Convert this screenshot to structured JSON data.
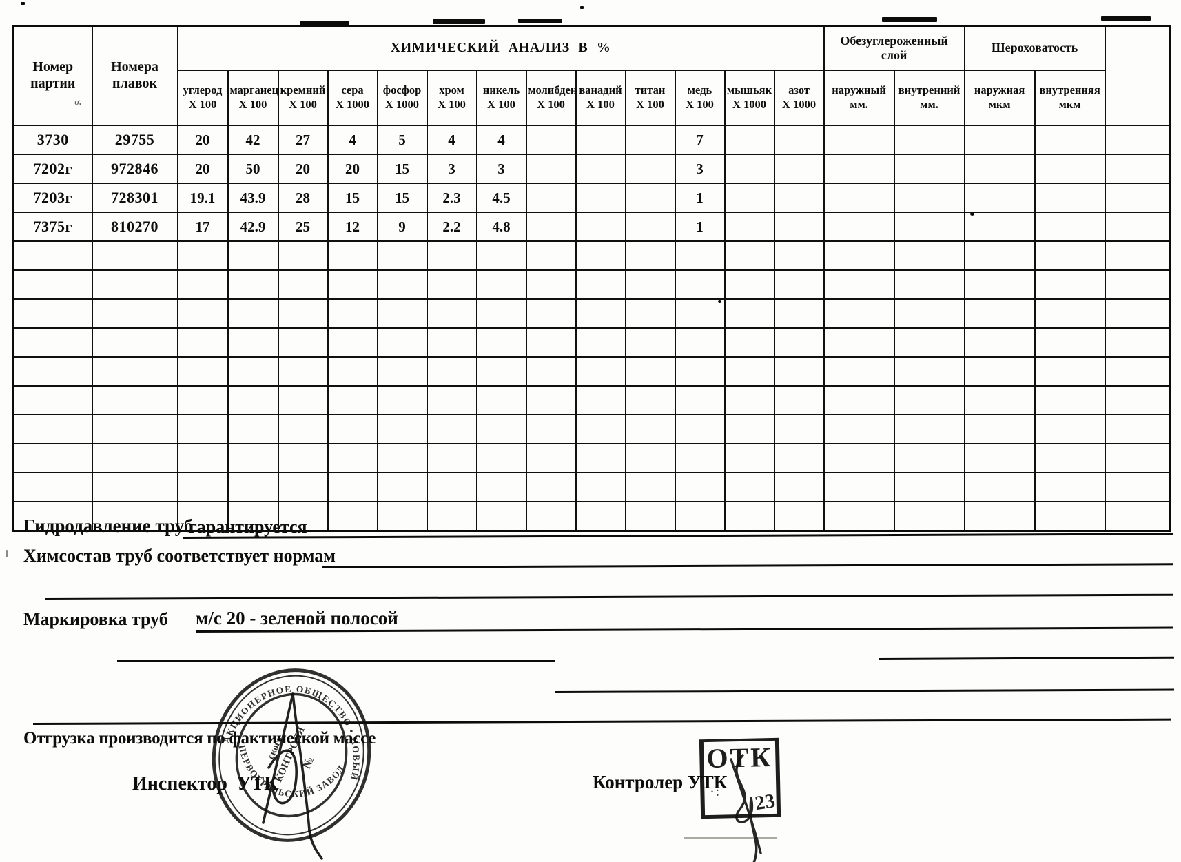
{
  "document": {
    "table": {
      "col1_header": "Номер\nпартии",
      "col1_note": "σ.",
      "col2_header": "Номера\nплавок",
      "chem_group": "ХИМИЧЕСКИЙ АНАЛИЗ В %",
      "decarb_group": "Обезуглероженный\nслой",
      "rough_group": "Шероховатость",
      "chem_cols": [
        {
          "name": "углерод",
          "mult": "X 100"
        },
        {
          "name": "марганец",
          "mult": "X 100"
        },
        {
          "name": "кремний",
          "mult": "X 100"
        },
        {
          "name": "сера",
          "mult": "X 1000"
        },
        {
          "name": "фосфор",
          "mult": "X 1000"
        },
        {
          "name": "хром",
          "mult": "X 100"
        },
        {
          "name": "никель",
          "mult": "X 100"
        },
        {
          "name": "молибден",
          "mult": "X 100"
        },
        {
          "name": "ванадий",
          "mult": "X 100"
        },
        {
          "name": "титан",
          "mult": "X 100"
        },
        {
          "name": "медь",
          "mult": "X 100"
        },
        {
          "name": "мышьяк",
          "mult": "X 1000"
        },
        {
          "name": "азот",
          "mult": "X 1000"
        }
      ],
      "decarb_cols": [
        {
          "name": "наружный",
          "unit": "мм."
        },
        {
          "name": "внутренний",
          "unit": "мм."
        }
      ],
      "rough_cols": [
        {
          "name": "наружная",
          "unit": "мкм"
        },
        {
          "name": "внутренняя",
          "unit": "мкм"
        }
      ],
      "rows": [
        {
          "party": "3730",
          "melts": "29755",
          "chem": [
            "20",
            "42",
            "27",
            "4",
            "5",
            "4",
            "4",
            "",
            "",
            "",
            "7",
            "",
            ""
          ],
          "decarb": [
            "",
            ""
          ],
          "rough": [
            "",
            ""
          ],
          "extra": ""
        },
        {
          "party": "7202г",
          "melts": "972846",
          "chem": [
            "20",
            "50",
            "20",
            "20",
            "15",
            "3",
            "3",
            "",
            "",
            "",
            "3",
            "",
            ""
          ],
          "decarb": [
            "",
            ""
          ],
          "rough": [
            "",
            ""
          ],
          "extra": ""
        },
        {
          "party": "7203г",
          "melts": "728301",
          "chem": [
            "19.1",
            "43.9",
            "28",
            "15",
            "15",
            "2.3",
            "4.5",
            "",
            "",
            "",
            "1",
            "",
            ""
          ],
          "decarb": [
            "",
            ""
          ],
          "rough": [
            "",
            ""
          ],
          "extra": ""
        },
        {
          "party": "7375г",
          "melts": "810270",
          "chem": [
            "17",
            "42.9",
            "25",
            "12",
            "9",
            "2.2",
            "4.8",
            "",
            "",
            "",
            "1",
            "",
            ""
          ],
          "decarb": [
            "",
            ""
          ],
          "rough": [
            "",
            ""
          ],
          "extra": ""
        }
      ],
      "empty_row_count": 10
    },
    "footer": {
      "hydro_label": "Гидродавление труб",
      "hydro_value": "гарантируется",
      "chem_label": "Химсостав труб соответствует нормам",
      "marking_label": "Маркировка труб",
      "marking_value": "м/с 20 - зеленой полосой",
      "shipping_note": "Отгрузка производится по фактической массе",
      "inspector_label": "Инспектор  УТК",
      "controller_label": "Контролер УТК"
    },
    "round_stamp": {
      "arc_top": "АКЦИОНЕРНОЕ ОБЩЕСТВО • НОВЫЙ",
      "arc_bottom": "ПЕРВОУРАЛЬСКИЙ ЗАВОД",
      "inner_lines": [
        "ского",
        "КОНТРОЛЯ",
        "№"
      ]
    },
    "otk_stamp": {
      "line1": "ОТК",
      "line2": "23"
    }
  }
}
